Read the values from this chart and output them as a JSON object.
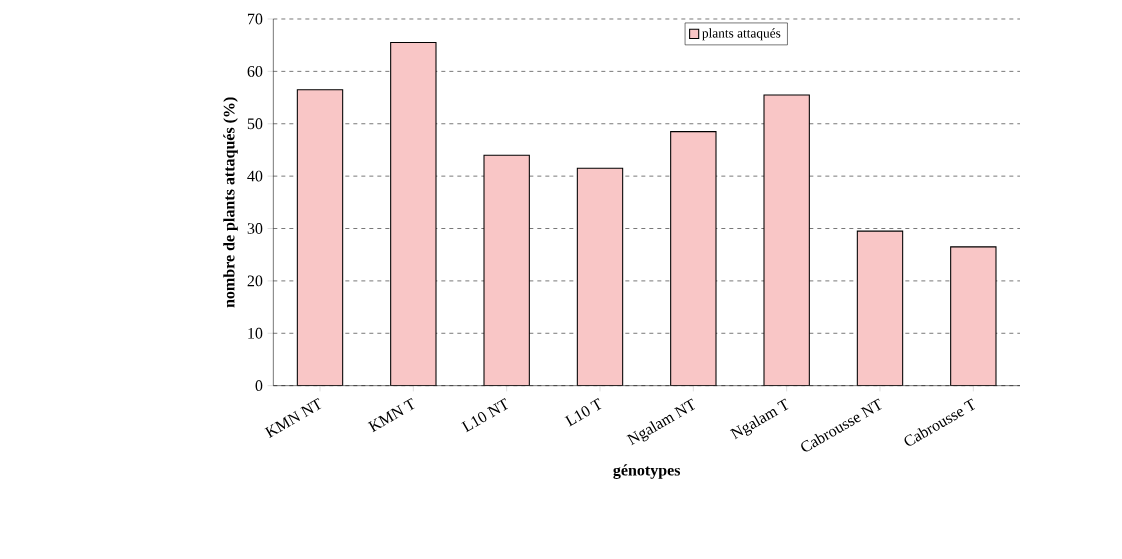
{
  "chart_data": {
    "type": "bar",
    "xlabel": "génotypes",
    "ylabel": "nombre de plants attaqués (%)",
    "categories": [
      "KMN NT",
      "KMN T",
      "L10 NT",
      "L10 T",
      "Ngalam NT",
      "Ngalam T",
      "Cabrousse NT",
      "Cabrousse T"
    ],
    "series": [
      {
        "name": "plants attaqués",
        "color": "#f9c6c6",
        "values": [
          56.5,
          65.5,
          44,
          41.5,
          48.5,
          55.5,
          29.5,
          26.5
        ]
      }
    ],
    "ylim": [
      0,
      70
    ],
    "yticks": [
      0,
      10,
      20,
      30,
      40,
      50,
      60,
      70
    ],
    "grid": "y",
    "legend": "top"
  }
}
